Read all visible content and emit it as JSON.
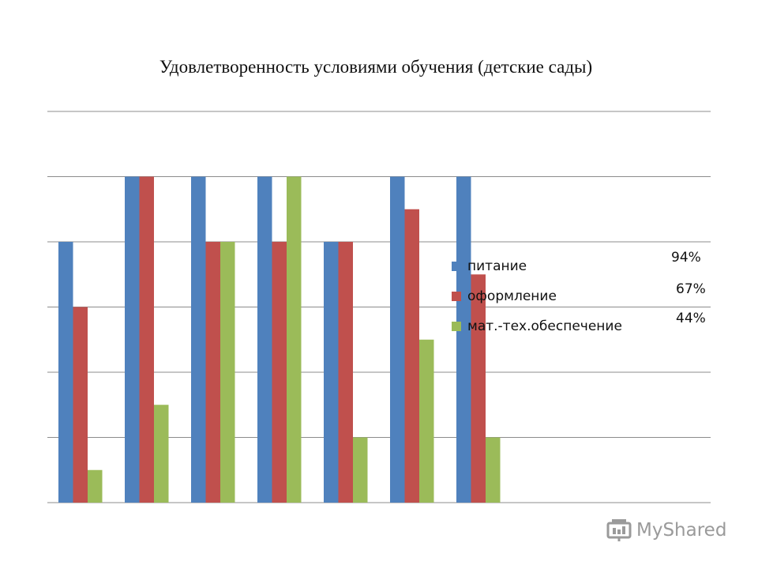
{
  "chart_data": {
    "type": "bar",
    "title": "Удовлетворенность условиями обучения (детские сады)",
    "categories": [
      "",
      "",
      "",
      "",
      "",
      "",
      ""
    ],
    "series": [
      {
        "name": "питание",
        "values": [
          4,
          5,
          5,
          5,
          4,
          5,
          5
        ],
        "color": "#4F81BD"
      },
      {
        "name": "оформление",
        "values": [
          3,
          5,
          4,
          4,
          4,
          4.5,
          3.5
        ],
        "color": "#C0504D"
      },
      {
        "name": "мат.-тех.обеспечение",
        "values": [
          0.5,
          1.5,
          4,
          5,
          1,
          2.5,
          1
        ],
        "color": "#9BBB59"
      }
    ],
    "ylim": [
      0,
      6
    ],
    "y_gridlines": [
      0,
      1,
      2,
      3,
      4,
      5,
      6
    ],
    "grid": true,
    "legend_position": "right",
    "annotations": [
      "94%",
      "67%",
      "44%"
    ]
  },
  "watermark": {
    "text": "MyShared"
  }
}
